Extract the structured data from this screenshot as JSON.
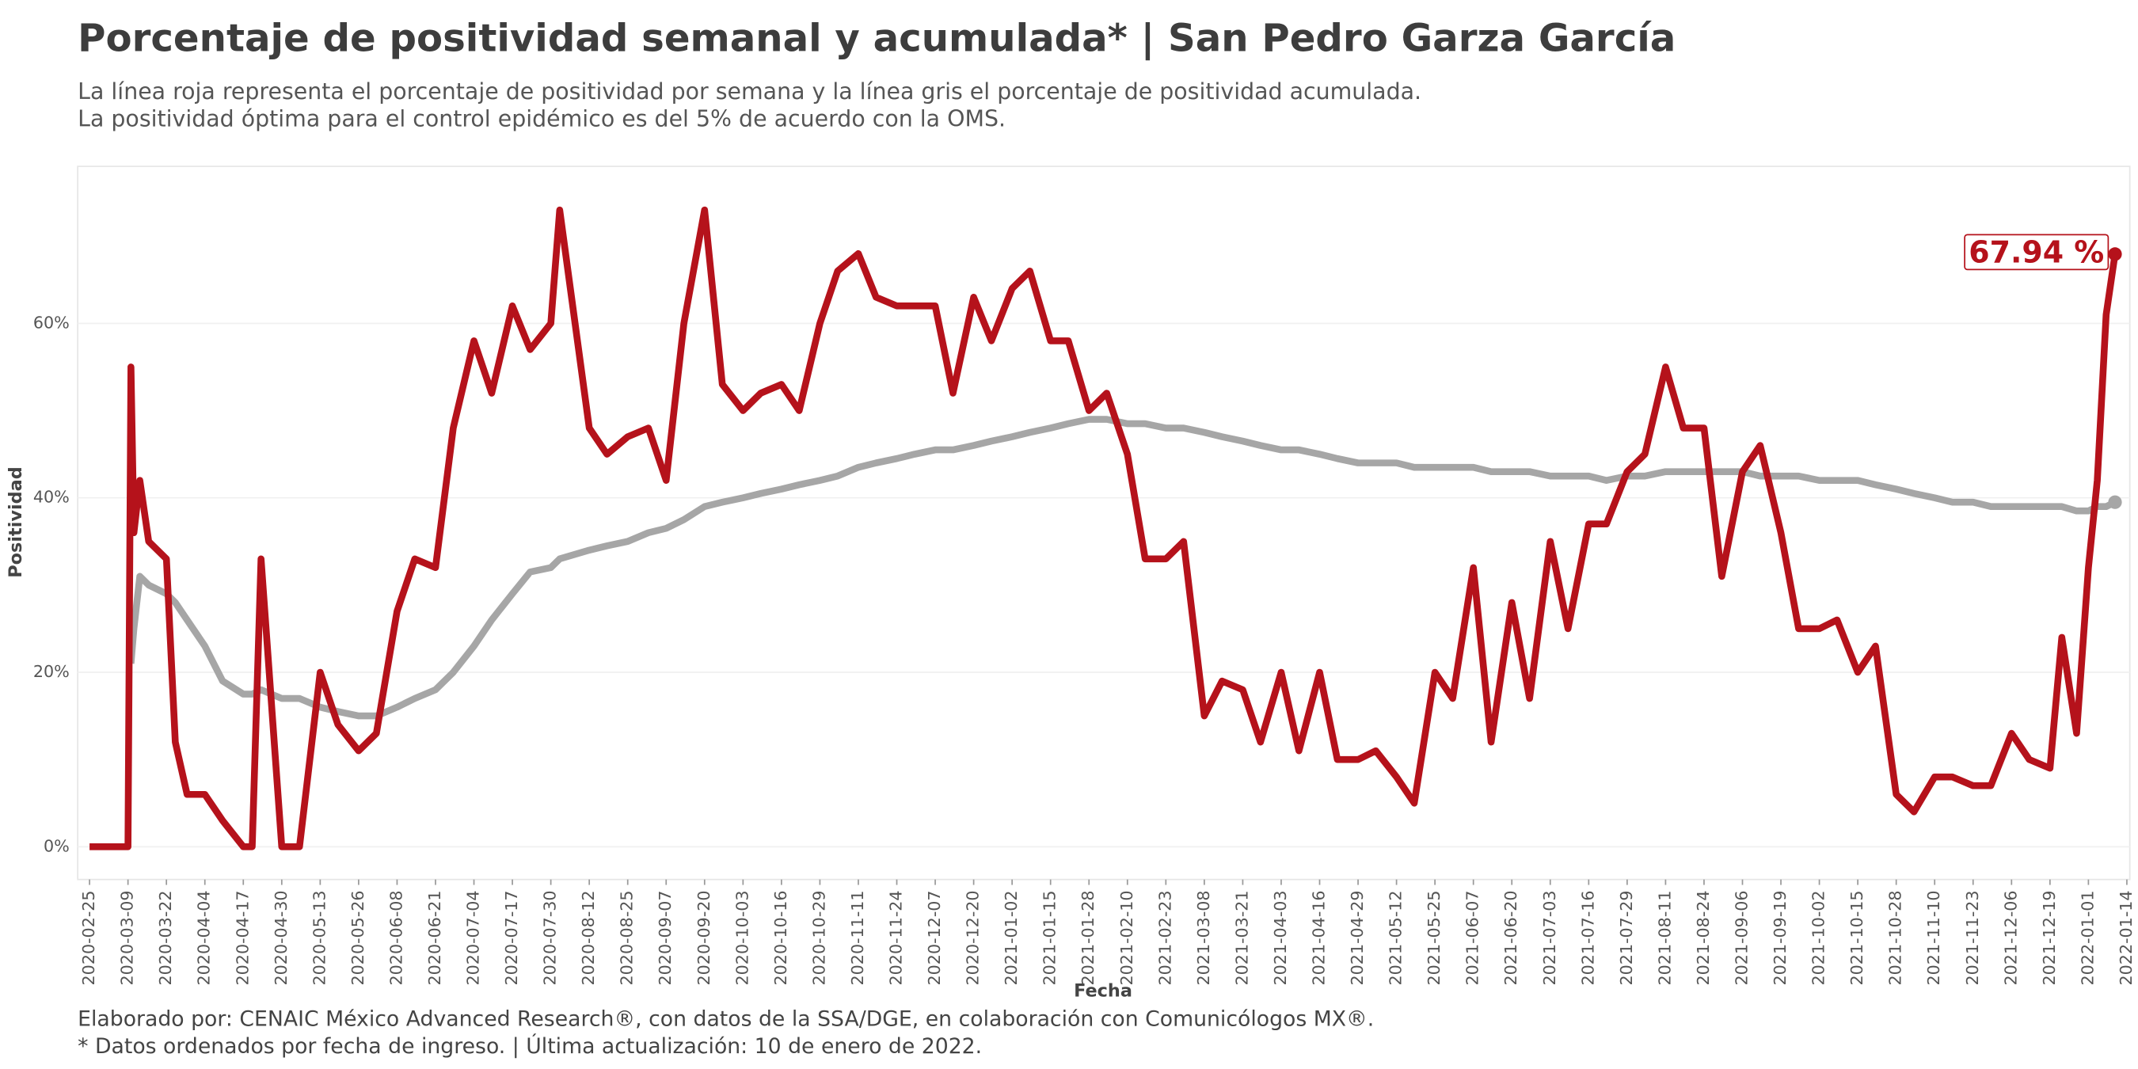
{
  "chart_data": {
    "type": "line",
    "title": "Porcentaje de positividad semanal y acumulada* | San Pedro Garza García",
    "subtitle": [
      "La línea roja representa el porcentaje de positividad por semana y la línea gris el porcentaje de positividad acumulada.",
      "La positividad óptima para el control epidémico es del 5% de acuerdo con la OMS."
    ],
    "xlabel": "Fecha",
    "ylabel": "Positividad",
    "footer": [
      "Elaborado por: CENAIC México Advanced Research®, con datos de la SSA/DGE, en colaboración con Comunicólogos MX®.",
      "* Datos ordenados por fecha de ingreso. | Última actualización: 10 de enero de 2022."
    ],
    "xlim": [
      "2020-02-21",
      "2022-01-15"
    ],
    "xticks": [
      "2020-02-25",
      "2020-03-09",
      "2020-03-22",
      "2020-04-04",
      "2020-04-17",
      "2020-04-30",
      "2020-05-13",
      "2020-05-26",
      "2020-06-08",
      "2020-06-21",
      "2020-07-04",
      "2020-07-17",
      "2020-07-30",
      "2020-08-12",
      "2020-08-25",
      "2020-09-07",
      "2020-09-20",
      "2020-10-03",
      "2020-10-16",
      "2020-10-29",
      "2020-11-11",
      "2020-11-24",
      "2020-12-07",
      "2020-12-20",
      "2021-01-02",
      "2021-01-15",
      "2021-01-28",
      "2021-02-10",
      "2021-02-23",
      "2021-03-08",
      "2021-03-21",
      "2021-04-03",
      "2021-04-16",
      "2021-04-29",
      "2021-05-12",
      "2021-05-25",
      "2021-06-07",
      "2021-06-20",
      "2021-07-03",
      "2021-07-16",
      "2021-07-29",
      "2021-08-11",
      "2021-08-24",
      "2021-09-06",
      "2021-09-19",
      "2021-10-02",
      "2021-10-15",
      "2021-10-28",
      "2021-11-10",
      "2021-11-23",
      "2021-12-06",
      "2021-12-19",
      "2022-01-01",
      "2022-01-14"
    ],
    "ylim": [
      -3.75,
      78
    ],
    "yticks": [
      {
        "value": 0,
        "label": "0%"
      },
      {
        "value": 20,
        "label": "20%"
      },
      {
        "value": 40,
        "label": "40%"
      },
      {
        "value": 60,
        "label": "60%"
      }
    ],
    "x": [
      "2020-02-25",
      "2020-03-03",
      "2020-03-09",
      "2020-03-10",
      "2020-03-11",
      "2020-03-13",
      "2020-03-16",
      "2020-03-22",
      "2020-03-25",
      "2020-03-29",
      "2020-04-04",
      "2020-04-10",
      "2020-04-17",
      "2020-04-20",
      "2020-04-23",
      "2020-04-30",
      "2020-05-06",
      "2020-05-13",
      "2020-05-19",
      "2020-05-26",
      "2020-06-01",
      "2020-06-08",
      "2020-06-14",
      "2020-06-21",
      "2020-06-27",
      "2020-07-04",
      "2020-07-10",
      "2020-07-17",
      "2020-07-23",
      "2020-07-30",
      "2020-08-02",
      "2020-08-12",
      "2020-08-18",
      "2020-08-25",
      "2020-09-01",
      "2020-09-07",
      "2020-09-13",
      "2020-09-20",
      "2020-09-26",
      "2020-10-03",
      "2020-10-09",
      "2020-10-16",
      "2020-10-22",
      "2020-10-29",
      "2020-11-04",
      "2020-11-11",
      "2020-11-17",
      "2020-11-24",
      "2020-11-30",
      "2020-12-07",
      "2020-12-13",
      "2020-12-20",
      "2020-12-26",
      "2021-01-02",
      "2021-01-08",
      "2021-01-15",
      "2021-01-21",
      "2021-01-28",
      "2021-02-03",
      "2021-02-10",
      "2021-02-16",
      "2021-02-23",
      "2021-03-01",
      "2021-03-08",
      "2021-03-14",
      "2021-03-21",
      "2021-03-27",
      "2021-04-03",
      "2021-04-09",
      "2021-04-16",
      "2021-04-22",
      "2021-04-29",
      "2021-05-05",
      "2021-05-12",
      "2021-05-18",
      "2021-05-25",
      "2021-05-31",
      "2021-06-07",
      "2021-06-13",
      "2021-06-20",
      "2021-06-26",
      "2021-07-03",
      "2021-07-09",
      "2021-07-16",
      "2021-07-22",
      "2021-07-29",
      "2021-08-04",
      "2021-08-11",
      "2021-08-17",
      "2021-08-24",
      "2021-08-30",
      "2021-09-06",
      "2021-09-12",
      "2021-09-19",
      "2021-09-25",
      "2021-10-02",
      "2021-10-08",
      "2021-10-15",
      "2021-10-21",
      "2021-10-28",
      "2021-11-03",
      "2021-11-10",
      "2021-11-16",
      "2021-11-23",
      "2021-11-29",
      "2021-12-06",
      "2021-12-12",
      "2021-12-19",
      "2021-12-23",
      "2021-12-28",
      "2022-01-01",
      "2022-01-04",
      "2022-01-07",
      "2022-01-10"
    ],
    "series": [
      {
        "color": "#b5121b",
        "values": [
          0,
          0,
          0,
          55,
          36,
          42,
          35,
          33,
          12,
          6,
          6,
          3,
          0,
          0,
          33,
          0,
          0,
          20,
          14,
          11,
          13,
          27,
          33,
          32,
          48,
          58,
          52,
          62,
          57,
          60,
          73,
          48,
          45,
          47,
          48,
          42,
          60,
          73,
          53,
          50,
          52,
          53,
          50,
          60,
          66,
          68,
          63,
          62,
          62,
          62,
          52,
          63,
          58,
          64,
          66,
          58,
          58,
          50,
          52,
          45,
          33,
          33,
          35,
          15,
          19,
          18,
          12,
          20,
          11,
          20,
          10,
          10,
          11,
          8,
          5,
          20,
          17,
          32,
          12,
          28,
          17,
          35,
          25,
          37,
          37,
          43,
          45,
          55,
          48,
          48,
          31,
          43,
          46,
          36,
          25,
          25,
          26,
          20,
          23,
          6,
          4,
          8,
          8,
          7,
          7,
          13,
          10,
          9,
          24,
          13,
          32,
          42,
          61,
          67.94
        ],
        "value_labels": [
          null,
          null,
          null,
          null,
          null,
          null,
          null,
          null,
          null,
          null,
          null,
          null,
          null,
          null,
          null,
          null,
          null,
          null,
          null,
          null,
          null,
          null,
          null,
          null,
          null,
          null,
          null,
          null,
          null,
          null,
          null,
          null,
          null,
          null,
          null,
          null,
          null,
          null,
          null,
          null,
          null,
          null,
          null,
          null,
          null,
          null,
          null,
          null,
          null,
          null,
          null,
          null,
          null,
          null,
          null,
          null,
          null,
          null,
          null,
          null,
          null,
          null,
          null,
          null,
          null,
          null,
          null,
          null,
          null,
          null,
          null,
          null,
          null,
          null,
          null,
          null,
          null,
          null,
          null,
          null,
          null,
          null,
          null,
          null,
          null,
          null,
          null,
          null,
          null,
          null,
          null,
          null,
          null,
          null,
          null,
          null,
          null,
          null,
          null,
          null,
          null,
          null,
          null,
          null,
          null,
          null,
          null,
          null,
          null,
          null,
          null,
          null,
          null,
          "67.94 %"
        ]
      },
      {
        "color": "#a6a6a6",
        "values": [
          null,
          null,
          null,
          21,
          25,
          31,
          30,
          29,
          28,
          26,
          23,
          19,
          17.5,
          17.5,
          18,
          17,
          17,
          16,
          15.5,
          15,
          15,
          16,
          17,
          18,
          20,
          23,
          26,
          29,
          31.5,
          32,
          33,
          34,
          34.5,
          35,
          36,
          36.5,
          37.5,
          39,
          39.5,
          40,
          40.5,
          41,
          41.5,
          42,
          42.5,
          43.5,
          44,
          44.5,
          45,
          45.5,
          45.5,
          46,
          46.5,
          47,
          47.5,
          48,
          48.5,
          49,
          49,
          48.5,
          48.5,
          48,
          48,
          47.5,
          47,
          46.5,
          46,
          45.5,
          45.5,
          45,
          44.5,
          44,
          44,
          44,
          43.5,
          43.5,
          43.5,
          43.5,
          43,
          43,
          43,
          42.5,
          42.5,
          42.5,
          42,
          42.5,
          42.5,
          43,
          43,
          43,
          43,
          43,
          42.5,
          42.5,
          42.5,
          42,
          42,
          42,
          41.5,
          41,
          40.5,
          40,
          39.5,
          39.5,
          39,
          39,
          39,
          39,
          39,
          38.5,
          38.5,
          39,
          39,
          39.5
        ]
      }
    ]
  }
}
